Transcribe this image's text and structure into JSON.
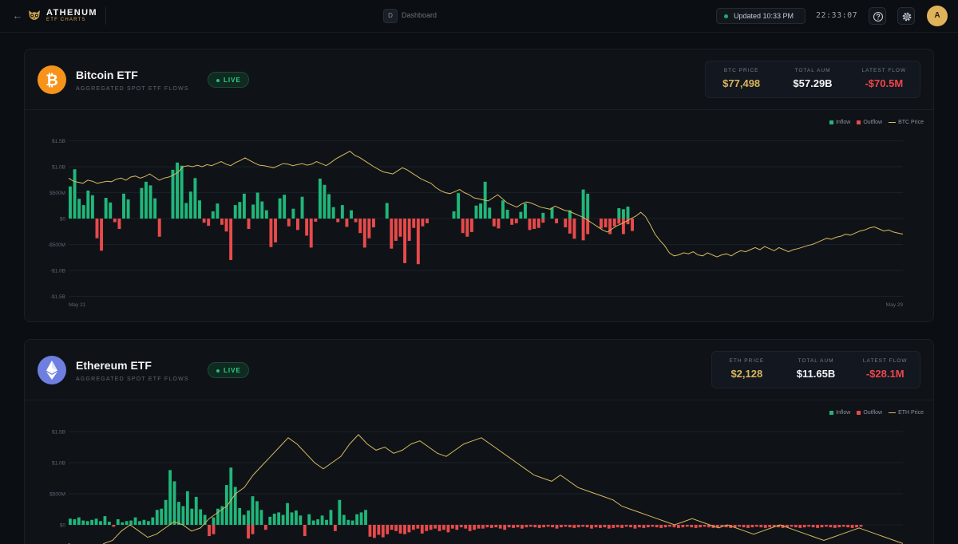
{
  "header": {
    "brand_title": "ATHENUM",
    "brand_subtitle": "ETF CHARTS",
    "breadcrumb_badge": "D",
    "breadcrumb": "Dashboard",
    "updated": "Updated 10:33 PM",
    "clock": "22:33:07",
    "avatar_initial": "A"
  },
  "colors": {
    "inflow": "#20b77a",
    "outflow": "#e84a4a",
    "price_line": "#d6b85d",
    "btc_icon": "#f7931a",
    "eth_icon": "#6e7fe0",
    "accent_gold": "#d9b45c"
  },
  "btc": {
    "title": "Bitcoin ETF",
    "subtitle": "AGGREGATED SPOT ETF FLOWS",
    "live": "LIVE",
    "icon": "bitcoin-icon",
    "stats": [
      {
        "label": "BTC PRICE",
        "value": "$77,498"
      },
      {
        "label": "TOTAL AUM",
        "value": "$57.29B"
      },
      {
        "label": "LATEST FLOW",
        "value": "-$70.5M"
      }
    ],
    "legend": {
      "inflow": "Inflow",
      "outflow": "Outflow",
      "line": "BTC Price"
    }
  },
  "eth": {
    "title": "Ethereum ETF",
    "subtitle": "AGGREGATED SPOT ETF FLOWS",
    "live": "LIVE",
    "icon": "ethereum-icon",
    "stats": [
      {
        "label": "ETH PRICE",
        "value": "$2,128"
      },
      {
        "label": "TOTAL AUM",
        "value": "$11.65B"
      },
      {
        "label": "LATEST FLOW",
        "value": "-$28.1M"
      }
    ],
    "legend": {
      "inflow": "Inflow",
      "outflow": "Outflow",
      "line": "ETH Price"
    }
  },
  "chart_data": [
    {
      "type": "bar",
      "title": "Bitcoin ETF",
      "y_ticks": [
        "$1.5B",
        "$1.0B",
        "$500M",
        "$0",
        "-$500M",
        "-$1.0B",
        "-$1.5B"
      ],
      "ylim": [
        -1500,
        1500
      ],
      "y_unit": "$M",
      "x_labels": [
        "May 21",
        "May 29"
      ],
      "legend_placement": "top-right",
      "series": [
        {
          "name": "Inflow",
          "values": [
            620,
            950,
            380,
            260,
            540,
            450,
            0,
            0,
            400,
            310,
            0,
            0,
            480,
            370,
            0,
            0,
            590,
            710,
            640,
            390,
            0,
            0,
            0,
            940,
            1080,
            1020,
            300,
            520,
            780,
            350,
            0,
            0,
            140,
            290,
            0,
            0,
            0,
            260,
            320,
            480,
            0,
            270,
            500,
            330,
            160,
            0,
            0,
            390,
            460,
            0,
            190,
            0,
            420,
            0,
            0,
            0,
            770,
            650,
            470,
            220,
            0,
            260,
            0,
            160,
            0,
            0,
            0,
            0,
            0,
            0,
            0,
            300,
            0,
            0,
            0,
            0,
            0,
            0,
            0,
            0,
            0,
            0,
            0,
            0,
            0,
            0,
            140,
            490,
            0,
            0,
            0,
            250,
            290,
            710,
            210,
            0,
            0,
            350,
            170,
            0,
            0,
            130,
            290,
            0,
            0,
            0,
            110,
            0,
            210,
            0,
            0,
            0,
            160,
            0,
            0,
            560,
            480,
            0,
            0,
            0,
            0,
            0,
            0,
            200,
            180,
            230,
            0,
            0,
            0,
            0,
            0,
            0,
            0,
            0,
            0,
            0,
            0,
            0,
            0,
            0,
            0,
            0,
            0,
            0,
            0,
            0,
            0,
            0,
            0,
            0,
            0,
            0,
            0,
            0,
            0,
            0,
            0,
            0,
            0,
            0,
            0,
            0,
            0,
            0,
            0,
            0,
            0,
            0,
            0,
            0,
            0,
            0,
            0,
            0,
            0,
            0,
            0,
            0,
            0,
            0,
            0,
            0,
            0,
            0,
            0,
            0,
            0
          ]
        },
        {
          "name": "Outflow",
          "values": [
            0,
            0,
            0,
            0,
            0,
            0,
            -380,
            -620,
            0,
            0,
            -70,
            -200,
            0,
            0,
            0,
            0,
            0,
            0,
            0,
            0,
            -350,
            0,
            0,
            0,
            0,
            0,
            0,
            0,
            0,
            0,
            -80,
            -140,
            0,
            0,
            -120,
            -250,
            -800,
            0,
            0,
            0,
            -200,
            0,
            0,
            0,
            0,
            -550,
            -460,
            0,
            0,
            -150,
            0,
            -220,
            0,
            -330,
            -560,
            -60,
            0,
            0,
            0,
            0,
            -70,
            0,
            -160,
            0,
            -70,
            -280,
            -560,
            -380,
            -170,
            0,
            0,
            0,
            -580,
            -430,
            -350,
            -860,
            -430,
            -180,
            -880,
            -150,
            -90,
            0,
            0,
            0,
            0,
            0,
            0,
            0,
            -280,
            -350,
            -260,
            0,
            0,
            0,
            0,
            -150,
            -190,
            0,
            0,
            -120,
            -90,
            0,
            0,
            -220,
            -200,
            -180,
            -80,
            0,
            0,
            -90,
            0,
            -170,
            -290,
            -390,
            0,
            -420,
            -300,
            0,
            0,
            -190,
            -170,
            -300,
            -150,
            -100,
            -300,
            -110,
            -240,
            0,
            0,
            0,
            0,
            0,
            0,
            0,
            0,
            0,
            0,
            0,
            0,
            0,
            0,
            0,
            0,
            0,
            0,
            0,
            0,
            0,
            0,
            0,
            0,
            0,
            0,
            0,
            0,
            0,
            0,
            0,
            0,
            0,
            0,
            0,
            0,
            0,
            0,
            0,
            0,
            0,
            0,
            0,
            0,
            0,
            0,
            0,
            0,
            0,
            0,
            0,
            0,
            0,
            0,
            0,
            0,
            0,
            0,
            0,
            0,
            0
          ]
        },
        {
          "name": "BTC Price",
          "values": [
            0.78,
            0.72,
            0.7,
            0.68,
            0.74,
            0.72,
            0.68,
            0.7,
            0.72,
            0.71,
            0.76,
            0.78,
            0.74,
            0.8,
            0.82,
            0.78,
            0.81,
            0.86,
            0.8,
            0.74,
            0.78,
            0.8,
            0.84,
            0.9,
            1.0,
            1.02,
            1.0,
            1.03,
            1.0,
            1.04,
            1.02,
            1.06,
            1.1,
            1.05,
            1.02,
            1.08,
            1.12,
            1.17,
            1.12,
            1.07,
            1.03,
            1.02,
            1.0,
            0.98,
            1.02,
            1.06,
            1.05,
            1.02,
            1.04,
            1.06,
            1.03,
            1.05,
            1.1,
            1.06,
            1.02,
            1.08,
            1.15,
            1.2,
            1.25,
            1.3,
            1.22,
            1.18,
            1.12,
            1.06,
            1.0,
            0.95,
            0.9,
            0.88,
            0.86,
            0.92,
            0.98,
            0.94,
            0.88,
            0.82,
            0.76,
            0.72,
            0.68,
            0.6,
            0.54,
            0.5,
            0.48,
            0.52,
            0.56,
            0.5,
            0.46,
            0.4,
            0.38,
            0.36,
            0.34,
            0.4,
            0.46,
            0.38,
            0.3,
            0.26,
            0.22,
            0.28,
            0.32,
            0.3,
            0.26,
            0.22,
            0.2,
            0.18,
            0.24,
            0.2,
            0.16,
            0.14,
            0.1,
            0.06,
            0.02,
            -0.04,
            -0.1,
            -0.16,
            -0.22,
            -0.26,
            -0.2,
            -0.14,
            -0.1,
            -0.05,
            0.0,
            0.05,
            0.12,
            0.04,
            -0.12,
            -0.3,
            -0.42,
            -0.52,
            -0.66,
            -0.72,
            -0.7,
            -0.66,
            -0.68,
            -0.64,
            -0.7,
            -0.72,
            -0.66,
            -0.7,
            -0.74,
            -0.7,
            -0.68,
            -0.72,
            -0.66,
            -0.62,
            -0.64,
            -0.6,
            -0.56,
            -0.6,
            -0.54,
            -0.58,
            -0.62,
            -0.56,
            -0.6,
            -0.64,
            -0.6,
            -0.58,
            -0.55,
            -0.52,
            -0.5,
            -0.46,
            -0.42,
            -0.38,
            -0.4,
            -0.36,
            -0.34,
            -0.3,
            -0.32,
            -0.28,
            -0.24,
            -0.22,
            -0.18,
            -0.16,
            -0.2,
            -0.24,
            -0.22,
            -0.26,
            -0.28,
            -0.3
          ]
        }
      ]
    },
    {
      "type": "bar",
      "title": "Ethereum ETF",
      "y_ticks": [
        "$1.5B",
        "$1.0B",
        "$500M",
        "$0"
      ],
      "ylim": [
        -1500,
        1500
      ],
      "y_unit": "$M",
      "legend_placement": "top-right",
      "series": [
        {
          "name": "Inflow",
          "values": [
            100,
            90,
            120,
            70,
            60,
            80,
            100,
            60,
            140,
            50,
            0,
            90,
            40,
            60,
            70,
            120,
            60,
            80,
            60,
            120,
            240,
            260,
            400,
            880,
            700,
            370,
            300,
            540,
            260,
            450,
            250,
            160,
            0,
            120,
            260,
            300,
            640,
            920,
            610,
            270,
            160,
            230,
            460,
            380,
            240,
            0,
            130,
            180,
            200,
            160,
            350,
            200,
            230,
            150,
            0,
            170,
            70,
            90,
            150,
            80,
            240,
            0,
            400,
            160,
            80,
            70,
            170,
            200,
            240,
            0,
            0,
            0,
            0,
            0,
            0,
            0,
            0,
            0,
            0,
            0,
            0,
            0,
            0,
            0,
            0,
            0,
            0,
            0,
            0,
            0,
            0,
            0,
            0,
            0,
            0,
            0,
            0,
            0,
            0,
            0,
            0,
            0,
            0,
            0,
            0,
            0,
            0,
            0,
            0,
            0,
            0,
            0,
            0,
            0,
            0,
            0,
            0,
            0,
            0,
            0,
            0,
            0,
            0,
            0,
            0,
            0,
            0,
            0,
            0,
            0,
            0,
            0,
            0,
            0,
            0,
            0,
            0,
            0,
            0,
            0,
            0,
            0,
            0,
            0,
            0,
            0,
            0,
            0,
            0,
            0,
            0,
            0,
            0,
            0,
            0,
            0,
            0,
            0,
            0,
            0,
            0,
            0,
            0,
            0,
            0,
            0,
            0,
            0,
            0,
            0,
            0,
            0,
            0,
            0,
            0,
            0,
            0,
            0,
            0,
            0,
            0,
            0,
            0,
            0,
            0,
            0,
            0,
            0,
            0,
            0,
            0,
            0
          ]
        },
        {
          "name": "Outflow",
          "values": [
            0,
            0,
            0,
            0,
            0,
            0,
            0,
            0,
            0,
            0,
            -30,
            0,
            0,
            0,
            0,
            0,
            0,
            0,
            0,
            0,
            0,
            0,
            0,
            0,
            0,
            0,
            0,
            0,
            0,
            0,
            0,
            0,
            -180,
            -150,
            0,
            0,
            0,
            0,
            0,
            0,
            0,
            -220,
            -150,
            0,
            0,
            -80,
            0,
            0,
            0,
            0,
            0,
            0,
            0,
            0,
            -180,
            0,
            0,
            0,
            0,
            0,
            0,
            -100,
            0,
            0,
            0,
            0,
            0,
            0,
            0,
            -190,
            -210,
            -160,
            -200,
            -150,
            -80,
            -100,
            -140,
            -150,
            -120,
            -80,
            -60,
            -140,
            -100,
            -80,
            -60,
            -100,
            -80,
            -120,
            -60,
            -80,
            -40,
            -60,
            -100,
            -80,
            -60,
            -60,
            -40,
            -50,
            -40,
            -60,
            -80,
            -40,
            -50,
            -40,
            -60,
            -40,
            -30,
            -40,
            -50,
            -40,
            -30,
            -40,
            -60,
            -40,
            -30,
            -40,
            -50,
            -40,
            -30,
            -40,
            -60,
            -40,
            -50,
            -40,
            -60,
            -50,
            -40,
            -50,
            -30,
            -40,
            -60,
            -40,
            -50,
            -40,
            -30,
            -40,
            -50,
            -40,
            -30,
            -40,
            -50,
            -40,
            -30,
            -40,
            -50,
            -40,
            -30,
            -40,
            -50,
            -40,
            -30,
            -40,
            -50,
            -40,
            -30,
            -40,
            -50,
            -40,
            -30,
            -40,
            -50,
            -40,
            -30,
            -40,
            -50,
            -40,
            -30,
            -40,
            -50,
            -40,
            -30,
            -40,
            -50,
            -40,
            -30,
            -40,
            -50,
            -40,
            -30,
            -40,
            -50,
            -40,
            -30
          ]
        },
        {
          "name": "ETH Price",
          "values": [
            -0.3,
            -0.4,
            -0.35,
            -0.45,
            -0.3,
            -0.25,
            -0.1,
            0.0,
            -0.1,
            -0.2,
            -0.15,
            -0.05,
            0.05,
            0.0,
            -0.1,
            -0.05,
            0.1,
            0.2,
            0.3,
            0.5,
            0.6,
            0.8,
            0.95,
            1.1,
            1.25,
            1.4,
            1.3,
            1.15,
            1.0,
            0.9,
            1.0,
            1.1,
            1.3,
            1.45,
            1.3,
            1.2,
            1.25,
            1.15,
            1.2,
            1.3,
            1.35,
            1.25,
            1.15,
            1.1,
            1.2,
            1.3,
            1.35,
            1.4,
            1.3,
            1.2,
            1.1,
            1.0,
            0.9,
            0.8,
            0.75,
            0.7,
            0.8,
            0.7,
            0.6,
            0.55,
            0.5,
            0.45,
            0.4,
            0.3,
            0.25,
            0.2,
            0.15,
            0.1,
            0.05,
            0.0,
            0.05,
            0.1,
            0.05,
            0.0,
            -0.05,
            0.0,
            -0.05,
            -0.1,
            -0.15,
            -0.1,
            -0.05,
            0.0,
            -0.05,
            -0.1,
            -0.15,
            -0.2,
            -0.25,
            -0.2,
            -0.15,
            -0.1,
            -0.05,
            -0.1,
            -0.15,
            -0.2,
            -0.25,
            -0.3
          ]
        }
      ]
    }
  ]
}
